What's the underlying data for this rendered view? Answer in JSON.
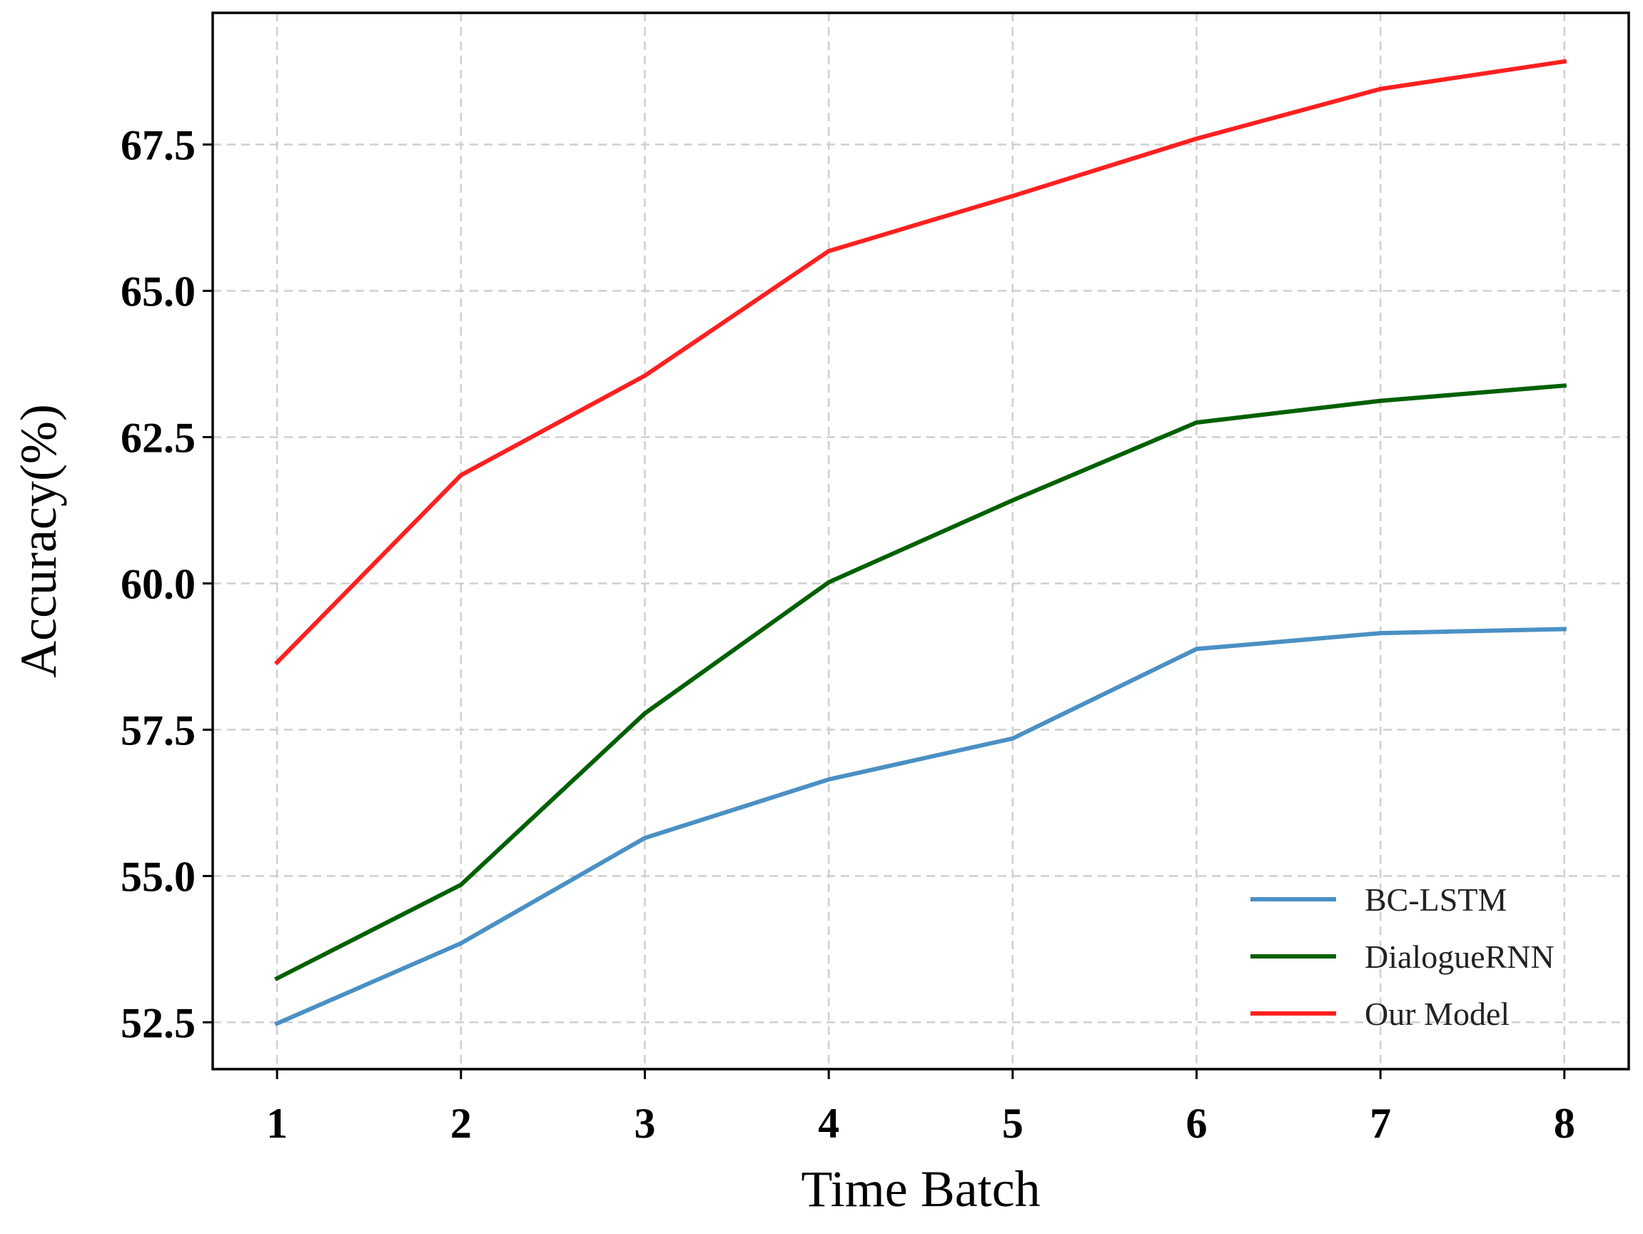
{
  "chart_data": {
    "type": "line",
    "title": "",
    "xlabel": "Time Batch",
    "ylabel": "Accuracy(%)",
    "x": [
      1,
      2,
      3,
      4,
      5,
      6,
      7,
      8
    ],
    "xticks": [
      "1",
      "2",
      "3",
      "4",
      "5",
      "6",
      "7",
      "8"
    ],
    "yticks": [
      "52.5",
      "55.0",
      "57.5",
      "60.0",
      "62.5",
      "65.0",
      "67.5"
    ],
    "ytick_values": [
      52.5,
      55.0,
      57.5,
      60.0,
      62.5,
      65.0,
      67.5
    ],
    "xlim": [
      0.65,
      8.35
    ],
    "ylim": [
      51.7,
      69.75
    ],
    "grid": true,
    "legend_position": "lower-right",
    "series": [
      {
        "name": "BC-LSTM",
        "color": "#4a90c4",
        "values": [
          52.48,
          53.85,
          55.65,
          56.65,
          57.35,
          58.88,
          59.15,
          59.22
        ]
      },
      {
        "name": "DialogueRNN",
        "color": "#006000",
        "values": [
          53.25,
          54.85,
          57.78,
          60.02,
          61.42,
          62.75,
          63.12,
          63.38
        ]
      },
      {
        "name": "Our Model",
        "color": "#ff2020",
        "values": [
          58.65,
          61.85,
          63.55,
          65.68,
          66.62,
          67.6,
          68.45,
          68.92
        ]
      }
    ]
  }
}
